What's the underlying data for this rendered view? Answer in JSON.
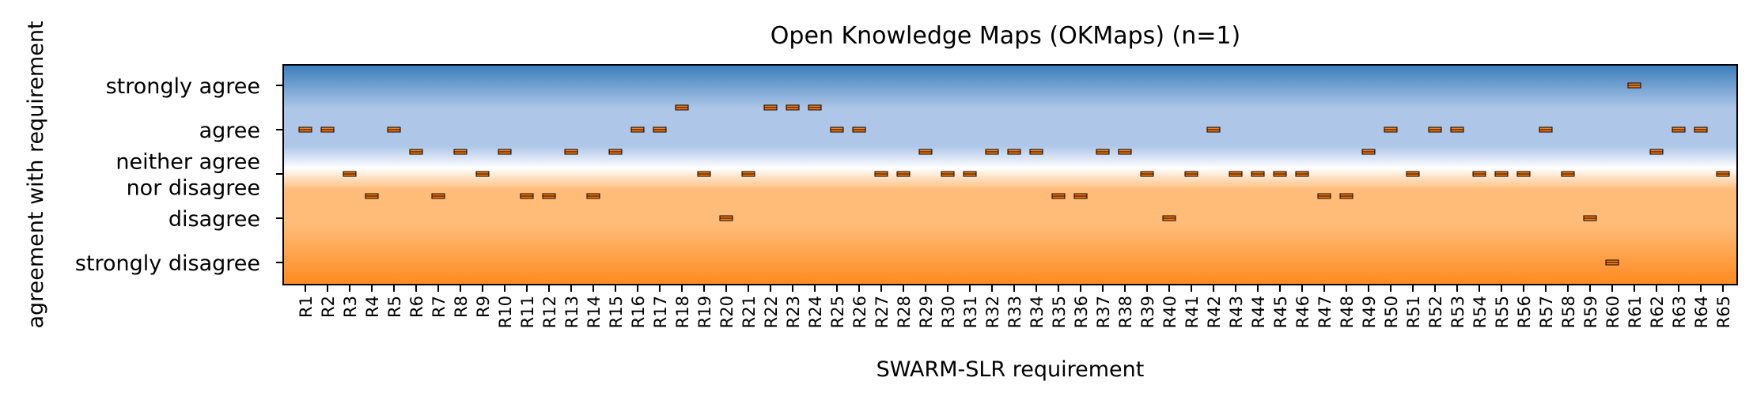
{
  "chart_data": {
    "type": "scatter",
    "title": "Open Knowledge Maps (OKMaps) (n=1)",
    "xlabel": "SWARM-SLR requirement",
    "ylabel": "agreement with requirement",
    "ylim": [
      1,
      5
    ],
    "grid": false,
    "legend": "none",
    "y_ticks": [
      {
        "value": 5,
        "lines": [
          "strongly agree"
        ]
      },
      {
        "value": 4,
        "lines": [
          "agree"
        ]
      },
      {
        "value": 3,
        "lines": [
          "neither agree",
          "nor disagree"
        ]
      },
      {
        "value": 2,
        "lines": [
          "disagree"
        ]
      },
      {
        "value": 1,
        "lines": [
          "strongly disagree"
        ]
      }
    ],
    "categories": [
      "R1",
      "R2",
      "R3",
      "R4",
      "R5",
      "R6",
      "R7",
      "R8",
      "R9",
      "R10",
      "R11",
      "R12",
      "R13",
      "R14",
      "R15",
      "R16",
      "R17",
      "R18",
      "R19",
      "R20",
      "R21",
      "R22",
      "R23",
      "R24",
      "R25",
      "R26",
      "R27",
      "R28",
      "R29",
      "R30",
      "R31",
      "R32",
      "R33",
      "R34",
      "R35",
      "R36",
      "R37",
      "R38",
      "R39",
      "R40",
      "R41",
      "R42",
      "R43",
      "R44",
      "R45",
      "R46",
      "R47",
      "R48",
      "R49",
      "R50",
      "R51",
      "R52",
      "R53",
      "R54",
      "R55",
      "R56",
      "R57",
      "R58",
      "R59",
      "R60",
      "R61",
      "R62",
      "R63",
      "R64",
      "R65"
    ],
    "values": [
      4,
      4,
      3,
      2.5,
      4,
      3.5,
      2.5,
      3.5,
      3,
      3.5,
      2.5,
      2.5,
      3.5,
      2.5,
      3.5,
      4,
      4,
      4.5,
      3,
      2,
      3,
      4.5,
      4.5,
      4.5,
      4,
      4,
      3,
      3,
      3.5,
      3,
      3,
      3.5,
      3.5,
      3.5,
      2.5,
      2.5,
      3.5,
      3.5,
      3,
      2,
      3,
      4,
      3,
      3,
      3,
      3,
      2.5,
      2.5,
      3.5,
      4,
      3,
      4,
      4,
      3,
      3,
      3,
      4,
      3,
      2,
      1,
      5,
      3.5,
      4,
      4,
      3
    ],
    "colors": {
      "marker": "#ff7f0e",
      "gradient_top": "#3a7dbb",
      "gradient_mid_blue": "#aec7e8",
      "gradient_mid_orange": "#ffbb78",
      "gradient_bottom": "#ff8a1e"
    }
  }
}
